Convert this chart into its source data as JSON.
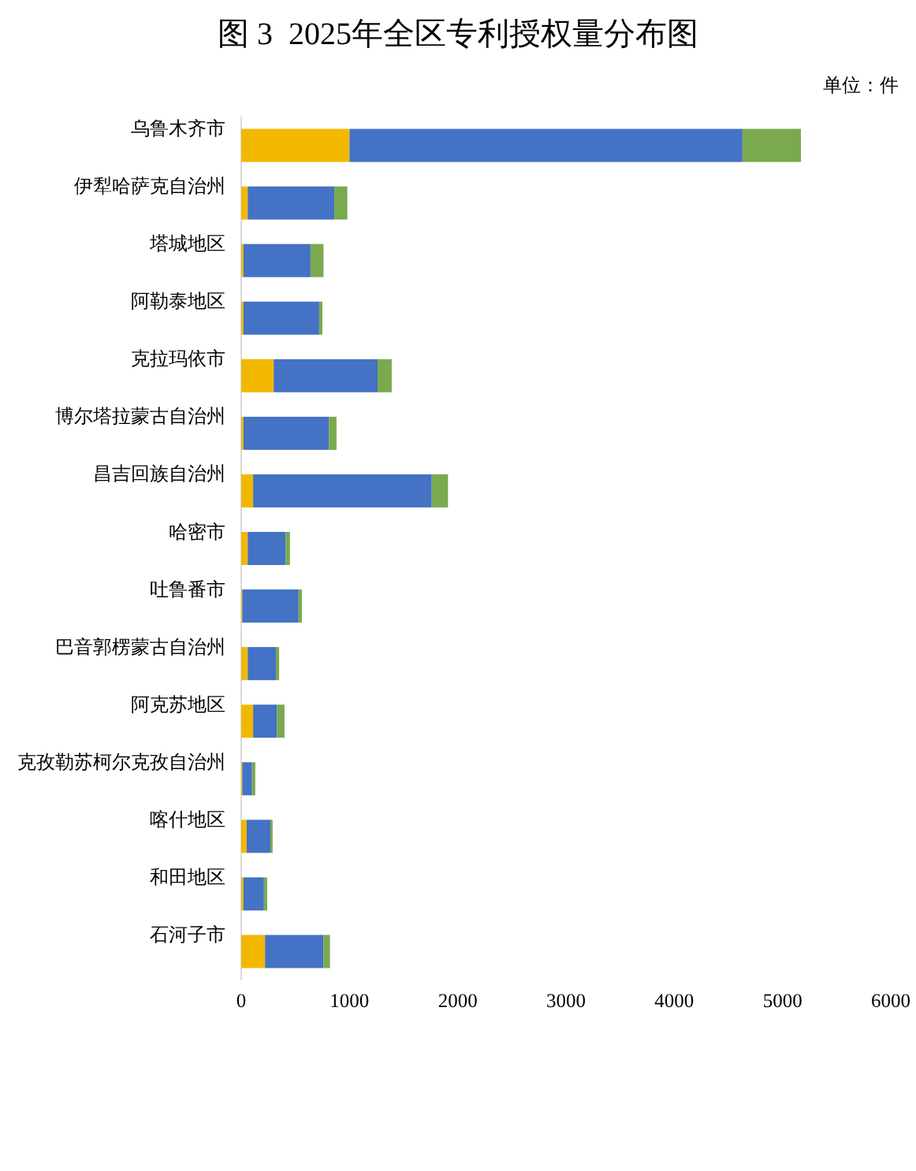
{
  "chart_data": {
    "type": "bar",
    "orientation": "horizontal",
    "stacked": true,
    "title": "图 3  2025年全区专利授权量分布图",
    "annotations": [
      "单位：件"
    ],
    "categories": [
      "乌鲁木齐市",
      "伊犁哈萨克自治州",
      "塔城地区",
      "阿勒泰地区",
      "克拉玛依市",
      "博尔塔拉蒙古自治州",
      "昌吉回族自治州",
      "哈密市",
      "吐鲁番市",
      "巴音郭楞蒙古自治州",
      "阿克苏地区",
      "克孜勒苏柯尔克孜自治州",
      "喀什地区",
      "和田地区",
      "石河子市"
    ],
    "series": [
      {
        "color": "#f2b800",
        "values": [
          1000,
          60,
          20,
          20,
          300,
          20,
          110,
          60,
          10,
          60,
          110,
          10,
          50,
          20,
          220
        ]
      },
      {
        "color": "#4472c4",
        "values": [
          3630,
          800,
          620,
          700,
          960,
          790,
          1650,
          350,
          520,
          260,
          220,
          90,
          220,
          190,
          540
        ]
      },
      {
        "color": "#7aa94e",
        "values": [
          540,
          120,
          120,
          30,
          130,
          70,
          150,
          40,
          30,
          30,
          70,
          30,
          20,
          30,
          60
        ]
      }
    ],
    "xlim": [
      0,
      6000
    ],
    "xticks": [
      0,
      1000,
      2000,
      3000,
      4000,
      5000,
      6000
    ]
  }
}
